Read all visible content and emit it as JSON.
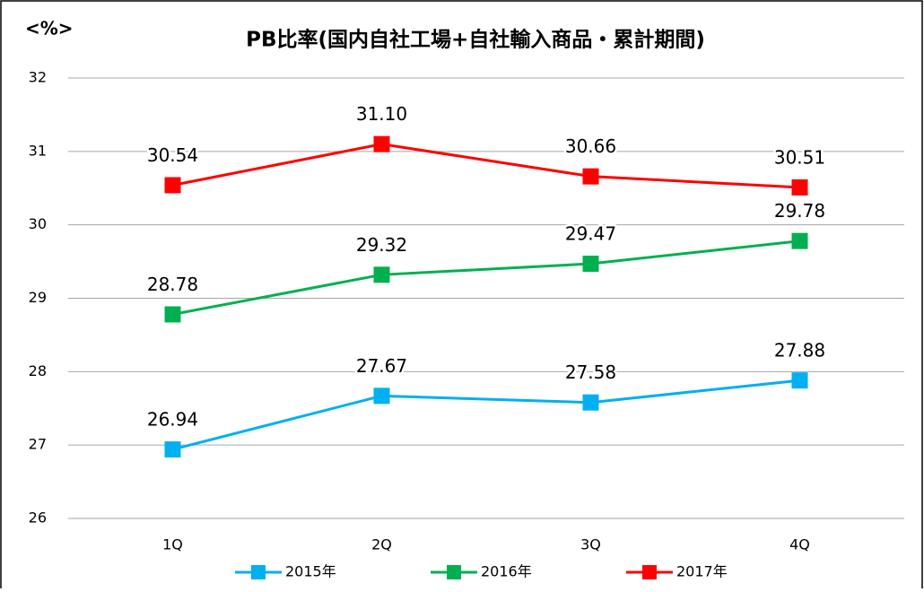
{
  "chart_data": {
    "type": "line",
    "title": "PB比率(国内自社工場+自社輸入商品・累計期間)",
    "y_label": "<%>",
    "categories": [
      "1Q",
      "2Q",
      "3Q",
      "4Q"
    ],
    "series": [
      {
        "name": "2015年",
        "color": "#00b0f0",
        "values": [
          26.94,
          27.67,
          27.58,
          27.88
        ],
        "value_labels": [
          "26.94",
          "27.67",
          "27.58",
          "27.88"
        ]
      },
      {
        "name": "2016年",
        "color": "#00b050",
        "values": [
          28.78,
          29.32,
          29.47,
          29.78
        ],
        "value_labels": [
          "28.78",
          "29.32",
          "29.47",
          "29.78"
        ]
      },
      {
        "name": "2017年",
        "color": "#ff0000",
        "values": [
          30.54,
          31.1,
          30.66,
          30.51
        ],
        "value_labels": [
          "30.54",
          "31.10",
          "30.66",
          "30.51"
        ]
      }
    ],
    "ylim": [
      26,
      32
    ],
    "yticks": [
      26,
      27,
      28,
      29,
      30,
      31,
      32
    ],
    "grid": true,
    "legend": "bottom"
  }
}
